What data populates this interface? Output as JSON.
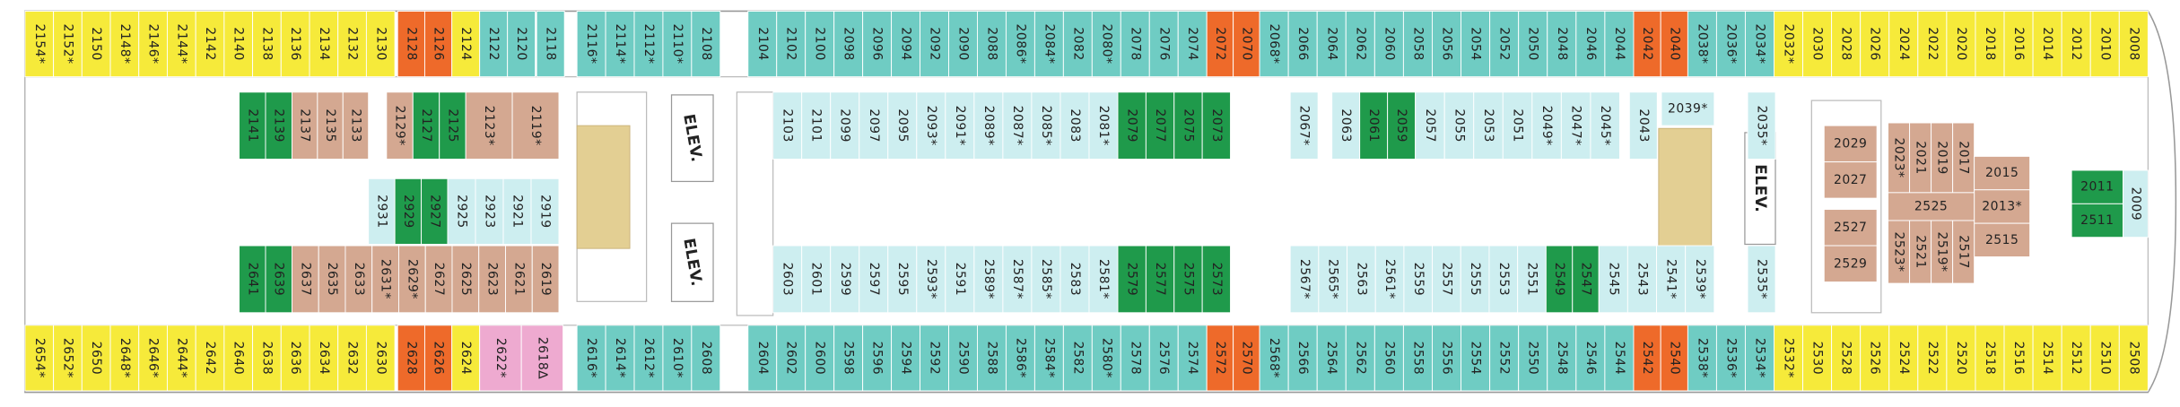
{
  "blocks": [
    {
      "fill": "#f6ea3a",
      "cabins": [
        "2154*",
        "2152*",
        "2150",
        "2148*",
        "2146*",
        "2144*",
        "2142",
        "2140",
        "2138",
        "2136",
        "2134",
        "2132",
        "2130"
      ]
    },
    {
      "fill": "#ee6a2a",
      "cabins": [
        "2128",
        "2126"
      ]
    },
    {
      "fill": "#f6ea3a",
      "cabins": [
        "2124"
      ]
    },
    {
      "fill": "#6fccc3",
      "cabins": [
        "2122",
        "2120"
      ]
    },
    {
      "fill": "#6fccc3",
      "cabins": [
        "2118"
      ]
    },
    {
      "fill": "#6fccc3",
      "cabins": [
        "2116*",
        "2114*",
        "2112*",
        "2110*",
        "2108"
      ]
    },
    {
      "fill": "#6fccc3",
      "cabins": [
        "2104",
        "2102",
        "2100",
        "2098",
        "2096",
        "2094",
        "2092",
        "2090",
        "2088",
        "2086*",
        "2084*",
        "2082",
        "2080*",
        "2078",
        "2076",
        "2074"
      ]
    },
    {
      "fill": "#ee6a2a",
      "cabins": [
        "2072",
        "2070"
      ]
    },
    {
      "fill": "#6fccc3",
      "cabins": [
        "2068*",
        "2066",
        "2064",
        "2062",
        "2060",
        "2058",
        "2056",
        "2054",
        "2052",
        "2050",
        "2048",
        "2046",
        "2044"
      ]
    },
    {
      "fill": "#ee6a2a",
      "cabins": [
        "2042",
        "2040"
      ]
    },
    {
      "fill": "#6fccc3",
      "cabins": [
        "2038*",
        "2036*",
        "2034*"
      ]
    },
    {
      "fill": "#f6ea3a",
      "cabins": [
        "2032*",
        "2030",
        "2028",
        "2026",
        "2024",
        "2022",
        "2020",
        "2018",
        "2016",
        "2014",
        "2012",
        "2010",
        "2008"
      ]
    },
    {
      "fill": "#f6ea3a",
      "cabins": [
        "2654*",
        "2652*",
        "2650",
        "2648*",
        "2646*",
        "2644*",
        "2642",
        "2640",
        "2638",
        "2636",
        "2634",
        "2632",
        "2630"
      ]
    },
    {
      "fill": "#ee6a2a",
      "cabins": [
        "2628",
        "2626"
      ]
    },
    {
      "fill": "#f6ea3a",
      "cabins": [
        "2624"
      ]
    },
    {
      "fill": "#eeaad0",
      "cabins": [
        "2622*",
        "2618∆"
      ]
    },
    {
      "fill": "#6fccc3",
      "cabins": [
        "2616*",
        "2614*",
        "2612*",
        "2610*",
        "2608"
      ]
    },
    {
      "fill": "#6fccc3",
      "cabins": [
        "2604",
        "2602",
        "2600",
        "2598",
        "2596",
        "2594",
        "2592",
        "2590",
        "2588",
        "2586*",
        "2584*",
        "2582",
        "2580*",
        "2578",
        "2576",
        "2574"
      ]
    },
    {
      "fill": "#ee6a2a",
      "cabins": [
        "2572",
        "2570"
      ]
    },
    {
      "fill": "#6fccc3",
      "cabins": [
        "2568*",
        "2566",
        "2564",
        "2562",
        "2560",
        "2558",
        "2556",
        "2554",
        "2552",
        "2550",
        "2548",
        "2546",
        "2544"
      ]
    },
    {
      "fill": "#ee6a2a",
      "cabins": [
        "2542",
        "2540"
      ]
    },
    {
      "fill": "#6fccc3",
      "cabins": [
        "2538*",
        "2536*",
        "2534*"
      ]
    },
    {
      "fill": "#f6ea3a",
      "cabins": [
        "2532*",
        "2530",
        "2528",
        "2526",
        "2524",
        "2522",
        "2520",
        "2518",
        "2516",
        "2514",
        "2512",
        "2510",
        "2508"
      ]
    },
    {
      "fill": "#1f9a4b",
      "cabins": [
        "2141",
        "2139"
      ]
    },
    {
      "fill": "#d4a891",
      "cabins": [
        "2137",
        "2135",
        "2133"
      ]
    },
    {
      "fill": "#d4a891",
      "cabins": [
        "2129*"
      ]
    },
    {
      "fill": "#1f9a4b",
      "cabins": [
        "2127",
        "2125"
      ]
    },
    {
      "fill": "#d4a891",
      "cabins": [
        "2123*",
        "2119*"
      ]
    },
    {
      "fill": "#cdeef0",
      "cabins": [
        "2103",
        "2101",
        "2099",
        "2097",
        "2095",
        "2093*",
        "2091*",
        "2089*",
        "2087*",
        "2085*",
        "2083",
        "2081*"
      ]
    },
    {
      "fill": "#1f9a4b",
      "cabins": [
        "2079",
        "2077",
        "2075",
        "2073"
      ]
    },
    {
      "fill": "#cdeef0",
      "cabins": [
        "2067*"
      ]
    },
    {
      "fill": "#cdeef0",
      "cabins": [
        "2063"
      ]
    },
    {
      "fill": "#1f9a4b",
      "cabins": [
        "2061",
        "2059"
      ]
    },
    {
      "fill": "#cdeef0",
      "cabins": [
        "2057",
        "2055",
        "2053",
        "2051",
        "2049*",
        "2047*",
        "2045*"
      ]
    },
    {
      "fill": "#cdeef0",
      "cabins": [
        "2043"
      ]
    },
    {
      "fill": "#cdeef0",
      "cabins": [
        "2039*"
      ]
    },
    {
      "fill": "#cdeef0",
      "cabins": [
        "2035*"
      ]
    },
    {
      "fill": "#cdeef0",
      "cabins": [
        "2931"
      ]
    },
    {
      "fill": "#1f9a4b",
      "cabins": [
        "2929",
        "2927"
      ]
    },
    {
      "fill": "#cdeef0",
      "cabins": [
        "2925",
        "2923",
        "2921",
        "2919"
      ]
    },
    {
      "fill": "#1f9a4b",
      "cabins": [
        "2641",
        "2639"
      ]
    },
    {
      "fill": "#d4a891",
      "cabins": [
        "2637",
        "2635",
        "2633",
        "2631*",
        "2629*",
        "2627",
        "2625",
        "2623",
        "2621",
        "2619"
      ]
    },
    {
      "fill": "#cdeef0",
      "cabins": [
        "2603",
        "2601",
        "2599",
        "2597",
        "2595",
        "2593*",
        "2591",
        "2589*",
        "2587*",
        "2585*",
        "2583",
        "2581*"
      ]
    },
    {
      "fill": "#1f9a4b",
      "cabins": [
        "2579",
        "2577",
        "2575",
        "2573"
      ]
    },
    {
      "fill": "#cdeef0",
      "cabins": [
        "2567*",
        "2565*",
        "2563",
        "2561*",
        "2559",
        "2557",
        "2555",
        "2553",
        "2551"
      ]
    },
    {
      "fill": "#1f9a4b",
      "cabins": [
        "2549",
        "2547"
      ]
    },
    {
      "fill": "#cdeef0",
      "cabins": [
        "2545",
        "2543",
        "2541*",
        "2539*"
      ]
    },
    {
      "fill": "#cdeef0",
      "cabins": [
        "2535*"
      ]
    },
    {
      "fill": "#d4a891",
      "cabins": [
        "2029",
        "2027"
      ]
    },
    {
      "fill": "#d4a891",
      "cabins": [
        "2527",
        "2529"
      ]
    },
    {
      "fill": "#d4a891",
      "cabins": [
        "2023*",
        "2021",
        "2019",
        "2017"
      ]
    },
    {
      "fill": "#d4a891",
      "cabins": [
        "2015",
        "2013*",
        "2515"
      ]
    },
    {
      "fill": "#d4a891",
      "cabins": [
        "2525"
      ]
    },
    {
      "fill": "#d4a891",
      "cabins": [
        "2523*",
        "2521",
        "2519*",
        "2517"
      ]
    },
    {
      "fill": "#1f9a4b",
      "cabins": [
        "2011",
        "2511"
      ]
    },
    {
      "fill": "#cdeef0",
      "cabins": [
        "2009"
      ]
    }
  ],
  "elevators": [
    "ELEV.",
    "ELEV.",
    "ELEV."
  ]
}
